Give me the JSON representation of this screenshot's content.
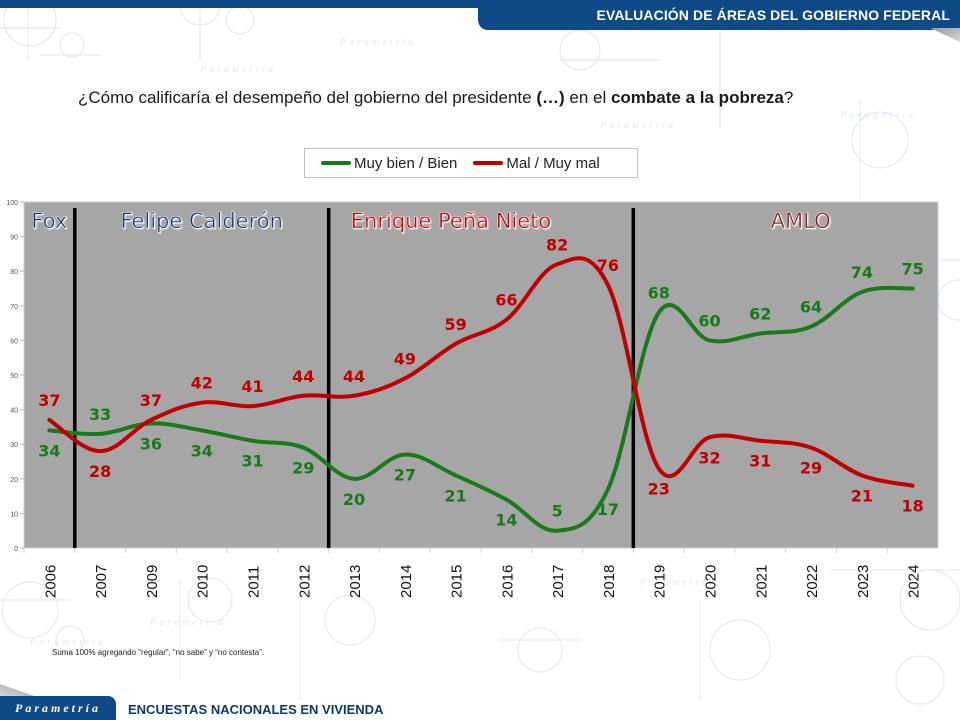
{
  "header": {
    "title": "EVALUACIÓN DE ÁREAS DEL GOBIERNO FEDERAL"
  },
  "question": {
    "pre": "¿Cómo calificaría el desempeño del gobierno del presidente ",
    "ellipsis": "(…)",
    "mid": " en el ",
    "topic": "combate a la pobreza",
    "post": "?"
  },
  "legend": {
    "items": [
      {
        "label": "Muy bien / Bien",
        "color": "#1a7a1a"
      },
      {
        "label": "Mal / Muy mal",
        "color": "#c00000"
      }
    ]
  },
  "footnote": "Suma 100%  agregando “regular”, “no sabe” y “no contesta”.",
  "footer": {
    "brand": "Parametría",
    "survey": "ENCUESTAS NACIONALES EN VIVIENDA"
  },
  "chart_data": {
    "type": "line",
    "title": "¿Cómo calificaría el desempeño del gobierno del presidente (…) en el combate a la pobreza?",
    "xlabel": "",
    "ylabel": "",
    "ylim": [
      0,
      100
    ],
    "yticks": [
      0,
      10,
      20,
      30,
      40,
      50,
      60,
      70,
      80,
      90,
      100
    ],
    "grid": false,
    "legend_position": "top-center",
    "categories": [
      "2006",
      "2007",
      "2009",
      "2010",
      "2011",
      "2012",
      "2013",
      "2014",
      "2015",
      "2016",
      "2017",
      "2018",
      "2019",
      "2020",
      "2021",
      "2022",
      "2023",
      "2024"
    ],
    "series": [
      {
        "name": "Muy bien / Bien",
        "color": "#1a7a1a",
        "values": [
          34,
          33,
          36,
          34,
          31,
          29,
          20,
          27,
          21,
          14,
          5,
          17,
          68,
          60,
          62,
          64,
          74,
          75
        ]
      },
      {
        "name": "Mal / Muy mal",
        "color": "#c00000",
        "values": [
          37,
          28,
          37,
          42,
          41,
          44,
          44,
          49,
          59,
          66,
          82,
          76,
          23,
          32,
          31,
          29,
          21,
          18
        ]
      }
    ],
    "label_positions": {
      "Muy bien / Bien": [
        "below",
        "above",
        "below",
        "below",
        "below",
        "below",
        "below",
        "below",
        "below",
        "below",
        "above",
        "below",
        "above",
        "above",
        "above",
        "above",
        "above",
        "above"
      ],
      "Mal / Muy mal": [
        "above",
        "below",
        "above",
        "above",
        "above",
        "above",
        "above",
        "above",
        "above",
        "above",
        "above",
        "above",
        "below",
        "below",
        "below",
        "below",
        "below",
        "below"
      ]
    },
    "periods": [
      {
        "label": "Fox",
        "start": "2006",
        "end": "2006",
        "color": "#1f3a6e"
      },
      {
        "label": "Felipe Calderón",
        "start": "2007",
        "end": "2012",
        "color": "#1f3a6e"
      },
      {
        "label": "Enrique Peña Nieto",
        "start": "2013",
        "end": "2018",
        "color": "#c00000"
      },
      {
        "label": "AMLO",
        "start": "2019",
        "end": "2024",
        "color": "#7a2020"
      }
    ],
    "plot_background": "#a6a6a6"
  }
}
